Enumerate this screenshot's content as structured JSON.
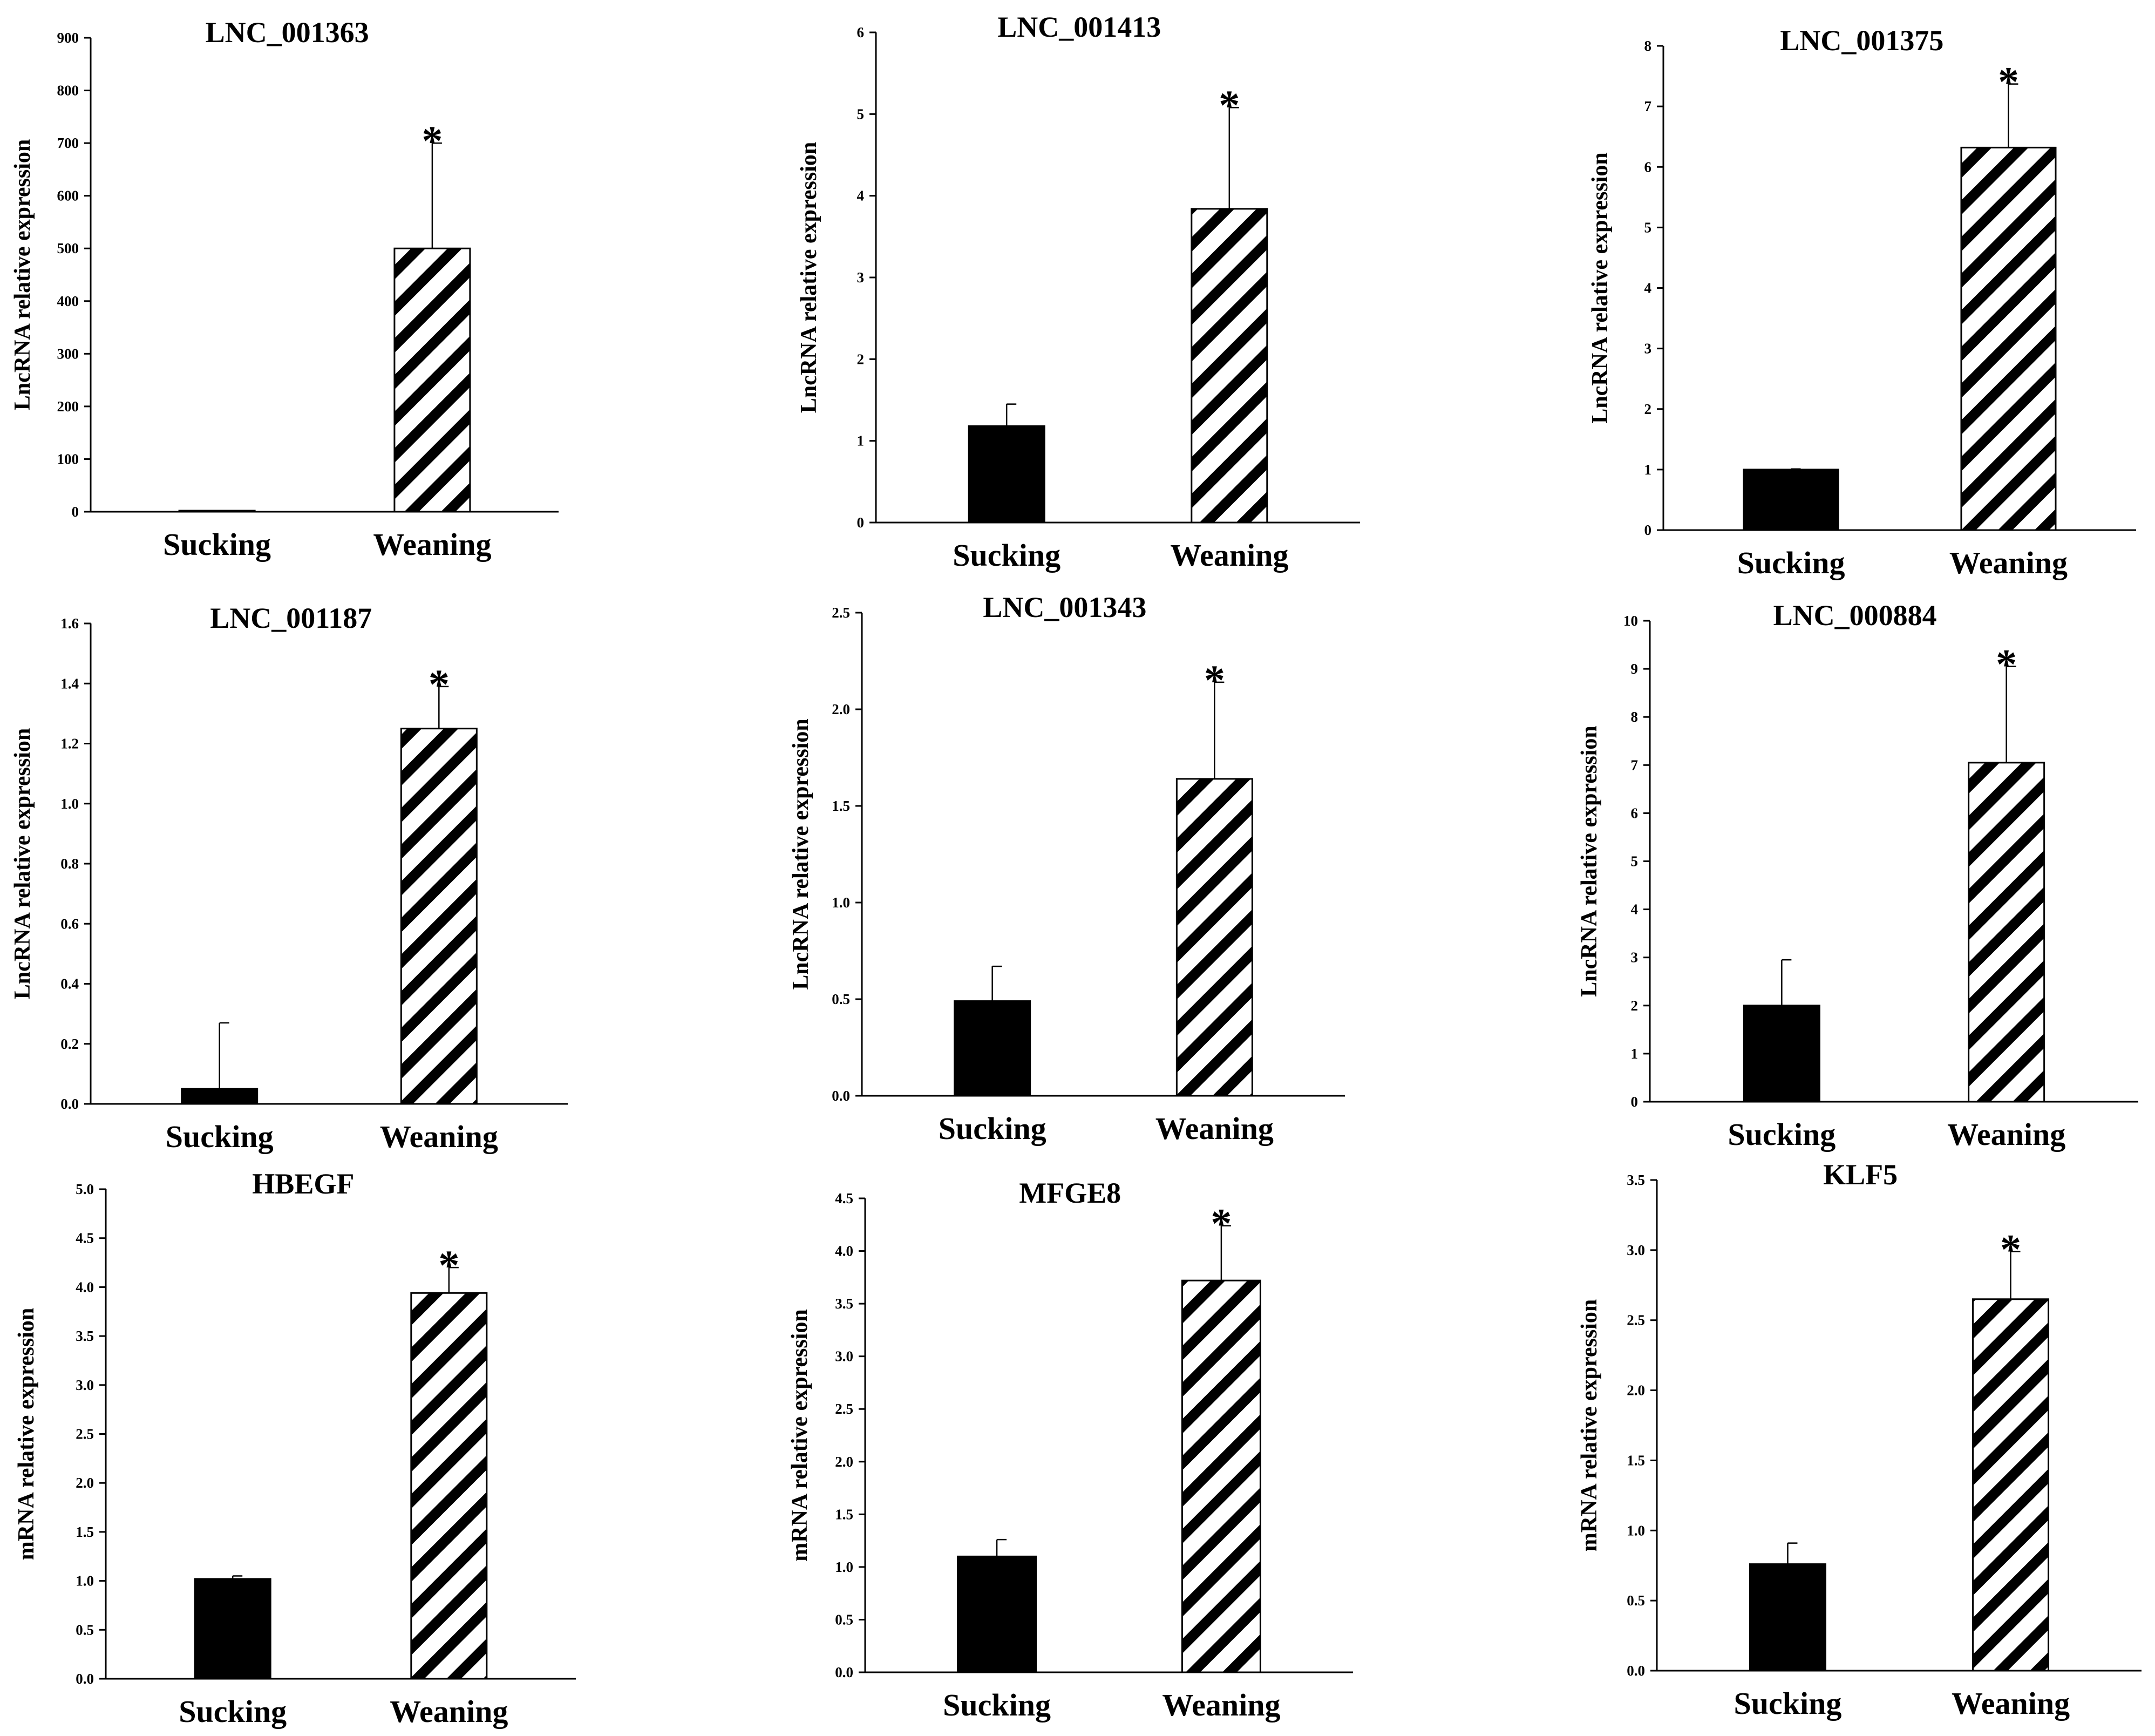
{
  "chart_data": [
    {
      "type": "bar",
      "title": "LNC_001363",
      "ylabel": "LncRNA relative expression",
      "categories": [
        "Sucking",
        "Weaning"
      ],
      "values": [
        2,
        500
      ],
      "errors": [
        0,
        200
      ],
      "significance": [
        "",
        "*"
      ],
      "ylim": [
        0,
        900
      ],
      "yticks": [
        "0",
        "100",
        "200",
        "300",
        "400",
        "500",
        "600",
        "700",
        "800",
        "900"
      ]
    },
    {
      "type": "bar",
      "title": "LNC_001413",
      "ylabel": "LncRNA relative expression",
      "categories": [
        "Sucking",
        "Weaning"
      ],
      "values": [
        1.18,
        3.84
      ],
      "errors": [
        0.27,
        1.24
      ],
      "significance": [
        "",
        "*"
      ],
      "ylim": [
        0,
        6
      ],
      "yticks": [
        "0",
        "1",
        "2",
        "3",
        "4",
        "5",
        "6"
      ]
    },
    {
      "type": "bar",
      "title": "LNC_001375",
      "ylabel": "LncRNA relative expression",
      "categories": [
        "Sucking",
        "Weaning"
      ],
      "values": [
        1.0,
        6.32
      ],
      "errors": [
        0.01,
        1.05
      ],
      "significance": [
        "",
        "*"
      ],
      "ylim": [
        0,
        8
      ],
      "yticks": [
        "0",
        "1",
        "2",
        "3",
        "4",
        "5",
        "6",
        "7",
        "8"
      ]
    },
    {
      "type": "bar",
      "title": "LNC_001187",
      "ylabel": "LncRNA relative expression",
      "categories": [
        "Sucking",
        "Weaning"
      ],
      "values": [
        0.05,
        1.25
      ],
      "errors": [
        0.22,
        0.14
      ],
      "significance": [
        "",
        "*"
      ],
      "ylim": [
        0,
        1.6
      ],
      "yticks": [
        "0.0",
        "0.2",
        "0.4",
        "0.6",
        "0.8",
        "1.0",
        "1.2",
        "1.4",
        "1.6"
      ]
    },
    {
      "type": "bar",
      "title": "LNC_001343",
      "ylabel": "LncRNA relative expression",
      "categories": [
        "Sucking",
        "Weaning"
      ],
      "values": [
        0.49,
        1.64
      ],
      "errors": [
        0.18,
        0.5
      ],
      "significance": [
        "",
        "*"
      ],
      "ylim": [
        0,
        2.5
      ],
      "yticks": [
        "0.0",
        "0.5",
        "1.0",
        "1.5",
        "2.0",
        "2.5"
      ]
    },
    {
      "type": "bar",
      "title": "LNC_000884",
      "ylabel": "LncRNA relative expression",
      "categories": [
        "Sucking",
        "Weaning"
      ],
      "values": [
        2.0,
        7.05
      ],
      "errors": [
        0.95,
        2.0
      ],
      "significance": [
        "",
        "*"
      ],
      "ylim": [
        0,
        10
      ],
      "yticks": [
        "0",
        "1",
        "2",
        "3",
        "4",
        "5",
        "6",
        "7",
        "8",
        "9",
        "10"
      ]
    },
    {
      "type": "bar",
      "title": "HBEGF",
      "ylabel": "mRNA relative expression",
      "categories": [
        "Sucking",
        "Weaning"
      ],
      "values": [
        1.02,
        3.94
      ],
      "errors": [
        0.03,
        0.26
      ],
      "significance": [
        "",
        "*"
      ],
      "ylim": [
        0,
        5
      ],
      "yticks": [
        "0.0",
        "0.5",
        "1.0",
        "1.5",
        "2.0",
        "2.5",
        "3.0",
        "3.5",
        "4.0",
        "4.5",
        "5.0"
      ]
    },
    {
      "type": "bar",
      "title": "MFGE8",
      "ylabel": "mRNA relative expression",
      "categories": [
        "Sucking",
        "Weaning"
      ],
      "values": [
        1.1,
        3.72
      ],
      "errors": [
        0.16,
        0.52
      ],
      "significance": [
        "",
        "*"
      ],
      "ylim": [
        0,
        4.5
      ],
      "yticks": [
        "0.0",
        "0.5",
        "1.0",
        "1.5",
        "2.0",
        "2.5",
        "3.0",
        "3.5",
        "4.0",
        "4.5"
      ]
    },
    {
      "type": "bar",
      "title": "KLF5",
      "ylabel": "mRNA relative expression",
      "categories": [
        "Sucking",
        "Weaning"
      ],
      "values": [
        0.76,
        2.65
      ],
      "errors": [
        0.15,
        0.34
      ],
      "significance": [
        "",
        "*"
      ],
      "ylim": [
        0,
        3.5
      ],
      "yticks": [
        "0.0",
        "0.5",
        "1.0",
        "1.5",
        "2.0",
        "2.5",
        "3.0",
        "3.5"
      ]
    }
  ]
}
